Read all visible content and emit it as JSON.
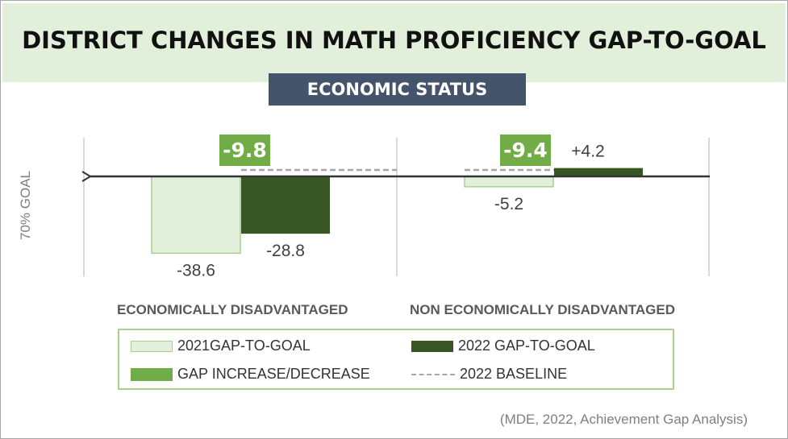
{
  "title": "DISTRICT CHANGES IN MATH PROFICIENCY GAP-TO-GOAL",
  "subtitle": "ECONOMIC STATUS",
  "y_axis_label": "70% GOAL",
  "source": "(MDE, 2022, Achievement Gap Analysis)",
  "colors": {
    "light_green": "#e2efda",
    "light_green_border": "#a9d08e",
    "dark_green": "#375623",
    "medium_green": "#70ad47",
    "navy": "#44546a",
    "gray": "#a6a6a6"
  },
  "legend": {
    "gap_2021": "2021GAP-TO-GOAL",
    "gap_2022": "2022 GAP-TO-GOAL",
    "change": "GAP INCREASE/DECREASE",
    "baseline": "2022 BASELINE"
  },
  "chart_data": {
    "type": "bar",
    "title": "DISTRICT CHANGES IN MATH PROFICIENCY GAP-TO-GOAL",
    "ylabel": "70% GOAL",
    "ylim": [
      -40,
      10
    ],
    "categories": [
      "ECONOMICALLY DISADVANTAGED",
      "NON ECONOMICALLY DISADVANTAGED"
    ],
    "series": [
      {
        "name": "2021GAP-TO-GOAL",
        "values": [
          -38.6,
          -5.2
        ],
        "labels": [
          "-38.6",
          "-5.2"
        ]
      },
      {
        "name": "2022 GAP-TO-GOAL",
        "values": [
          -28.8,
          4.2
        ],
        "labels": [
          "-28.8",
          "+4.2"
        ]
      }
    ],
    "changes": {
      "values": [
        -9.8,
        -9.4
      ],
      "labels": [
        "-9.8",
        "-9.4"
      ]
    }
  }
}
